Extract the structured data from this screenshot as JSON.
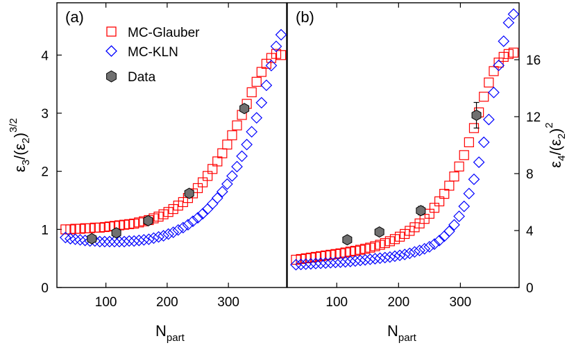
{
  "chart_data": [
    {
      "type": "scatter",
      "panel_label": "(a)",
      "xlabel": "N",
      "xlabel_sub": "part",
      "ylabel_parts": [
        "ε",
        "3",
        "/(ε",
        "2",
        ")",
        "3/2"
      ],
      "xlim": [
        20,
        395
      ],
      "ylim": [
        0,
        4.9
      ],
      "xticks": [
        100,
        200,
        300
      ],
      "yticks": [
        0,
        1,
        2,
        3,
        4
      ],
      "legend_position": "top-left",
      "series": [
        {
          "name": "MC-Glauber",
          "marker": "square",
          "color": "#ff0000",
          "x": [
            34,
            42,
            50,
            58,
            66,
            74,
            82,
            90,
            98,
            106,
            114,
            122,
            130,
            138,
            146,
            154,
            162,
            170,
            178,
            186,
            194,
            202,
            210,
            218,
            226,
            234,
            242,
            250,
            258,
            266,
            274,
            282,
            290,
            298,
            306,
            314,
            322,
            330,
            338,
            346,
            354,
            362,
            370,
            378,
            386
          ],
          "y": [
            1.0,
            1.0,
            1.01,
            1.01,
            1.02,
            1.02,
            1.03,
            1.03,
            1.04,
            1.05,
            1.06,
            1.07,
            1.08,
            1.09,
            1.1,
            1.12,
            1.14,
            1.16,
            1.19,
            1.22,
            1.26,
            1.3,
            1.35,
            1.41,
            1.47,
            1.54,
            1.62,
            1.71,
            1.81,
            1.92,
            2.04,
            2.17,
            2.31,
            2.46,
            2.62,
            2.79,
            2.97,
            3.16,
            3.36,
            3.54,
            3.71,
            3.85,
            3.95,
            4.02,
            4.0
          ]
        },
        {
          "name": "MC-KLN",
          "marker": "diamond",
          "color": "#0000ff",
          "x": [
            34,
            42,
            50,
            58,
            66,
            74,
            82,
            90,
            98,
            106,
            114,
            122,
            130,
            138,
            146,
            154,
            162,
            170,
            178,
            186,
            194,
            202,
            210,
            218,
            226,
            234,
            242,
            250,
            258,
            266,
            274,
            282,
            290,
            298,
            306,
            314,
            322,
            330,
            338,
            346,
            354,
            362,
            370,
            378,
            386
          ],
          "y": [
            0.86,
            0.84,
            0.83,
            0.82,
            0.81,
            0.8,
            0.8,
            0.79,
            0.79,
            0.79,
            0.79,
            0.79,
            0.79,
            0.8,
            0.8,
            0.81,
            0.82,
            0.83,
            0.85,
            0.87,
            0.89,
            0.92,
            0.95,
            0.99,
            1.03,
            1.08,
            1.14,
            1.2,
            1.27,
            1.35,
            1.44,
            1.54,
            1.65,
            1.78,
            1.92,
            2.08,
            2.26,
            2.46,
            2.68,
            2.92,
            3.18,
            3.48,
            3.82,
            4.15,
            4.35
          ]
        },
        {
          "name": "Data",
          "marker": "hexagon",
          "color": "#707070",
          "x": [
            77,
            117,
            169,
            236,
            326
          ],
          "y": [
            0.84,
            0.94,
            1.15,
            1.62,
            3.08
          ]
        }
      ]
    },
    {
      "type": "scatter",
      "panel_label": "(b)",
      "xlabel": "N",
      "xlabel_sub": "part",
      "ylabel_parts": [
        "ε",
        "4",
        "/(ε",
        "2",
        ")",
        "2"
      ],
      "xlim": [
        20,
        395
      ],
      "ylim": [
        0,
        20
      ],
      "xticks": [
        100,
        200,
        300
      ],
      "yticks": [
        0,
        4,
        8,
        12,
        16
      ],
      "series": [
        {
          "name": "MC-Glauber",
          "marker": "square",
          "color": "#ff0000",
          "x": [
            34,
            42,
            50,
            58,
            66,
            74,
            82,
            90,
            98,
            106,
            114,
            122,
            130,
            138,
            146,
            154,
            162,
            170,
            178,
            186,
            194,
            202,
            210,
            218,
            226,
            234,
            242,
            250,
            258,
            266,
            274,
            282,
            290,
            298,
            306,
            314,
            322,
            330,
            338,
            346,
            354,
            362,
            370,
            378,
            386
          ],
          "y": [
            1.95,
            2.0,
            2.05,
            2.1,
            2.15,
            2.2,
            2.25,
            2.3,
            2.35,
            2.4,
            2.46,
            2.52,
            2.58,
            2.65,
            2.72,
            2.8,
            2.9,
            3.0,
            3.12,
            3.25,
            3.4,
            3.57,
            3.76,
            3.98,
            4.23,
            4.5,
            4.82,
            5.18,
            5.6,
            6.05,
            6.58,
            7.15,
            7.8,
            8.5,
            9.3,
            10.2,
            11.2,
            12.3,
            13.4,
            14.4,
            15.2,
            15.8,
            16.2,
            16.4,
            16.5
          ]
        },
        {
          "name": "MC-KLN",
          "marker": "diamond",
          "color": "#0000ff",
          "x": [
            34,
            42,
            50,
            58,
            66,
            74,
            82,
            90,
            98,
            106,
            114,
            122,
            130,
            138,
            146,
            154,
            162,
            170,
            178,
            186,
            194,
            202,
            210,
            218,
            226,
            234,
            242,
            250,
            258,
            266,
            274,
            282,
            290,
            298,
            306,
            314,
            322,
            330,
            338,
            346,
            354,
            362,
            370,
            378,
            386
          ],
          "y": [
            1.6,
            1.62,
            1.64,
            1.66,
            1.68,
            1.7,
            1.72,
            1.74,
            1.76,
            1.78,
            1.8,
            1.83,
            1.86,
            1.9,
            1.94,
            1.98,
            2.02,
            2.06,
            2.1,
            2.14,
            2.2,
            2.26,
            2.32,
            2.4,
            2.5,
            2.6,
            2.72,
            2.86,
            3.05,
            3.3,
            3.6,
            3.95,
            4.4,
            5.0,
            5.7,
            6.6,
            7.6,
            8.8,
            10.2,
            11.8,
            13.7,
            15.6,
            17.3,
            18.6,
            19.2
          ]
        },
        {
          "name": "Data",
          "marker": "hexagon",
          "color": "#707070",
          "x": [
            117,
            169,
            236,
            326
          ],
          "y": [
            3.35,
            3.9,
            5.4,
            12.1
          ],
          "yerr": [
            0.2,
            0.2,
            0.3,
            0.9
          ]
        }
      ]
    }
  ]
}
